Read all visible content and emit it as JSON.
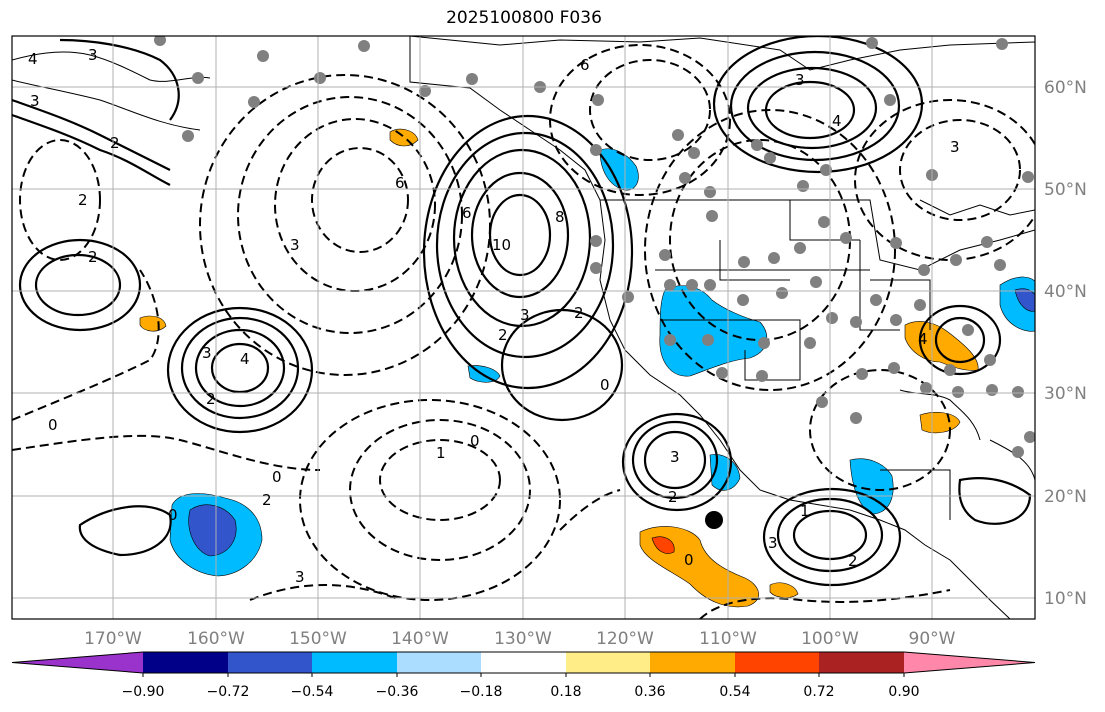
{
  "title": "2025100800 F036",
  "lon_ticks": [
    "170°W",
    "160°W",
    "150°W",
    "140°W",
    "130°W",
    "120°W",
    "110°W",
    "100°W",
    "90°W"
  ],
  "lat_ticks": [
    "60°N",
    "50°N",
    "40°N",
    "30°N",
    "20°N",
    "10°N"
  ],
  "colorbar": {
    "tick_labels": [
      "−0.90",
      "−0.72",
      "−0.54",
      "−0.36",
      "−0.18",
      "0.18",
      "0.36",
      "0.54",
      "0.72",
      "0.90"
    ],
    "colors": [
      "#9933cc",
      "#000088",
      "#3355cc",
      "#00bbff",
      "#aaddff",
      "#ffffff",
      "#ffee88",
      "#ffaa00",
      "#ff4400",
      "#aa2222",
      "#ff88aa"
    ]
  },
  "contour_labels": [
    "3",
    "4",
    "3",
    "2",
    "2",
    "6",
    "6",
    "2",
    "3",
    "4",
    "3",
    "2",
    "6",
    "8",
    "10",
    "3",
    "2",
    "2",
    "0",
    "3",
    "4",
    "3",
    "3",
    "4",
    "0",
    "1",
    "0",
    "0",
    "3",
    "2",
    "0",
    "2",
    "0",
    "1",
    "2",
    "3"
  ],
  "feature_colors": {
    "positive_fill": "#ffaa00",
    "positive_strong": "#ff4400",
    "negative_fill": "#00bbff",
    "negative_strong": "#3355cc",
    "station": "#808080",
    "grid": "#b0b0b0"
  }
}
